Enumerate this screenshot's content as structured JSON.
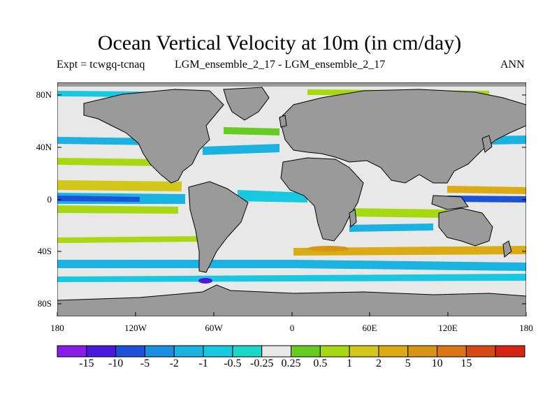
{
  "title": "Ocean Vertical Velocity at 10m (in cm/day)",
  "subtitle_left": "Expt = tcwgq-tcnaq",
  "subtitle_center": "LGM_ensemble_2_17 - LGM_ensemble_2_17",
  "subtitle_right": "ANN",
  "y_ticks": [
    "80N",
    "40N",
    "0",
    "40S",
    "80S"
  ],
  "x_ticks": [
    "180",
    "120W",
    "60W",
    "0",
    "60E",
    "120E",
    "180"
  ],
  "colorbar": {
    "colors": [
      "#8a1ce8",
      "#4a18e0",
      "#1c52d8",
      "#1a8ee0",
      "#1ab2e0",
      "#18c8e0",
      "#1ad8c8",
      "#e8e8e8",
      "#66cc22",
      "#a8d812",
      "#d2c81a",
      "#dcaa12",
      "#d89414",
      "#dc7414",
      "#d84814",
      "#d82414"
    ],
    "labels": [
      "-15",
      "-10",
      "-5",
      "-2",
      "-1",
      "-0.5",
      "-0.25",
      "0.25",
      "0.5",
      "1",
      "2",
      "5",
      "10",
      "15"
    ]
  },
  "colors": {
    "land": "#9a9a9a",
    "ocean_neutral": "#e8e8e8",
    "coast": "#000000"
  }
}
